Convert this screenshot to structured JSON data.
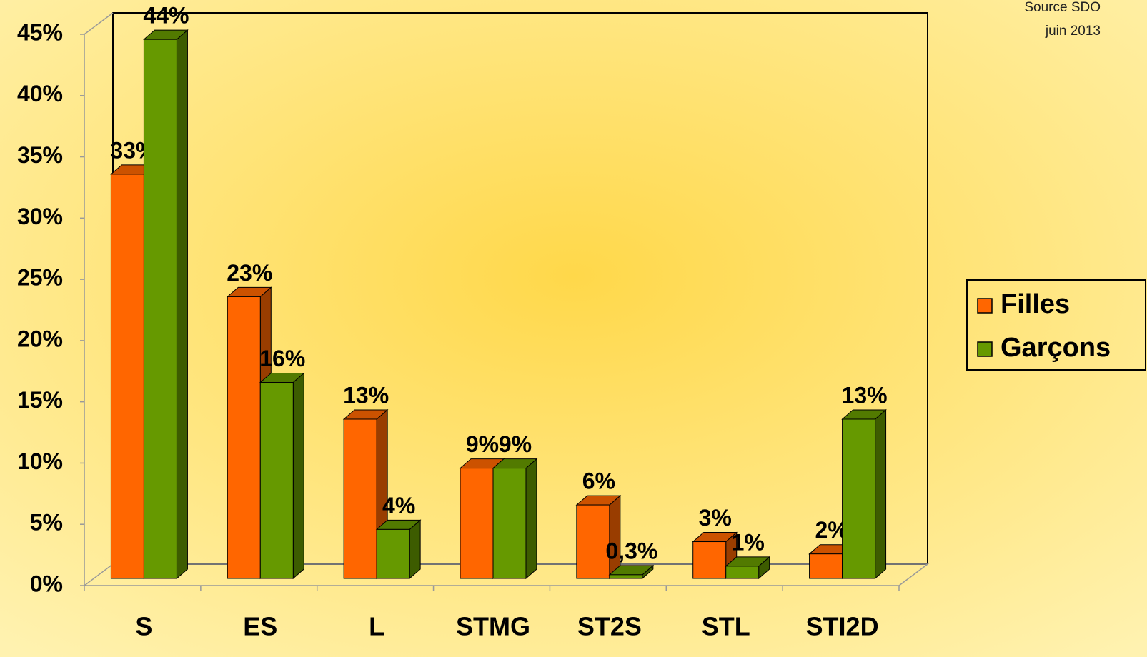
{
  "chart_data": {
    "type": "bar3d",
    "source": [
      "Source SDO",
      "juin 2013"
    ],
    "categories": [
      "S",
      "ES",
      "L",
      "STMG",
      "ST2S",
      "STL",
      "STI2D"
    ],
    "series": [
      {
        "name": "Filles",
        "color": "#ff6600",
        "values": [
          33,
          23,
          13,
          9,
          6,
          3,
          2
        ],
        "value_labels": [
          "33%",
          "23%",
          "13%",
          "9%",
          "6%",
          "3%",
          "2%"
        ]
      },
      {
        "name": "Garçons",
        "color": "#669900",
        "values": [
          44,
          16,
          4,
          9,
          0.3,
          1,
          13
        ],
        "value_labels": [
          "44%",
          "16%",
          "4%",
          "9%",
          "0,3%",
          "1%",
          "13%"
        ]
      }
    ],
    "ylim": [
      0,
      45
    ],
    "yticks": [
      {
        "value": 0,
        "label": "0%"
      },
      {
        "value": 5,
        "label": "5%"
      },
      {
        "value": 10,
        "label": "10%"
      },
      {
        "value": 15,
        "label": "15%"
      },
      {
        "value": 20,
        "label": "20%"
      },
      {
        "value": 25,
        "label": "25%"
      },
      {
        "value": 30,
        "label": "30%"
      },
      {
        "value": 35,
        "label": "35%"
      },
      {
        "value": 40,
        "label": "40%"
      },
      {
        "value": 45,
        "label": "45%"
      }
    ],
    "legend": "right"
  }
}
